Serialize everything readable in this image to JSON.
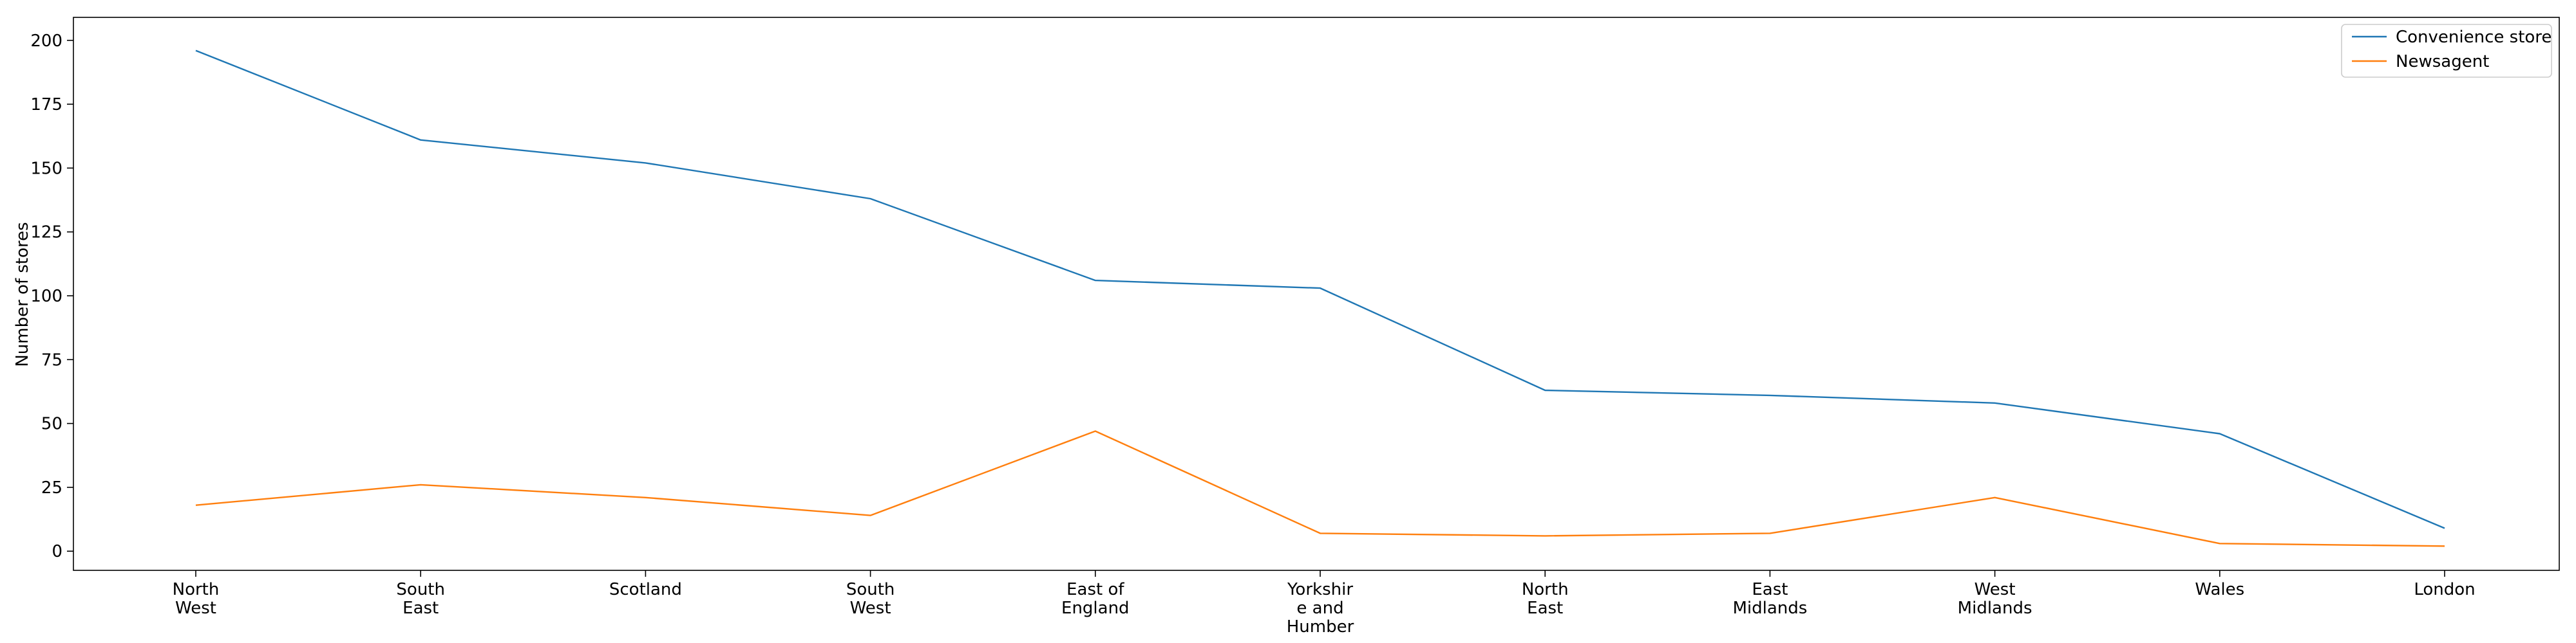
{
  "chart_data": {
    "type": "line",
    "title": "",
    "xlabel": "",
    "ylabel": "Number of stores",
    "categories": [
      [
        "North",
        "West"
      ],
      [
        "South",
        "East"
      ],
      [
        "Scotland"
      ],
      [
        "South",
        "West"
      ],
      [
        "East of",
        "England"
      ],
      [
        "Yorkshir",
        "e and",
        "Humber"
      ],
      [
        "North",
        "East"
      ],
      [
        "East",
        "Midlands"
      ],
      [
        "West",
        "Midlands"
      ],
      [
        "Wales"
      ],
      [
        "London"
      ]
    ],
    "ylim": [
      -7.5,
      209
    ],
    "yticks": [
      0,
      25,
      50,
      75,
      100,
      125,
      150,
      175,
      200
    ],
    "grid": false,
    "legend_position": "top-right",
    "series": [
      {
        "name": "Convenience store",
        "color": "#1f77b4",
        "values": [
          196,
          161,
          152,
          138,
          106,
          103,
          63,
          61,
          58,
          46,
          9
        ]
      },
      {
        "name": "Newsagent",
        "color": "#ff7f0e",
        "values": [
          18,
          26,
          21,
          14,
          47,
          7,
          6,
          7,
          21,
          3,
          2
        ]
      }
    ]
  }
}
